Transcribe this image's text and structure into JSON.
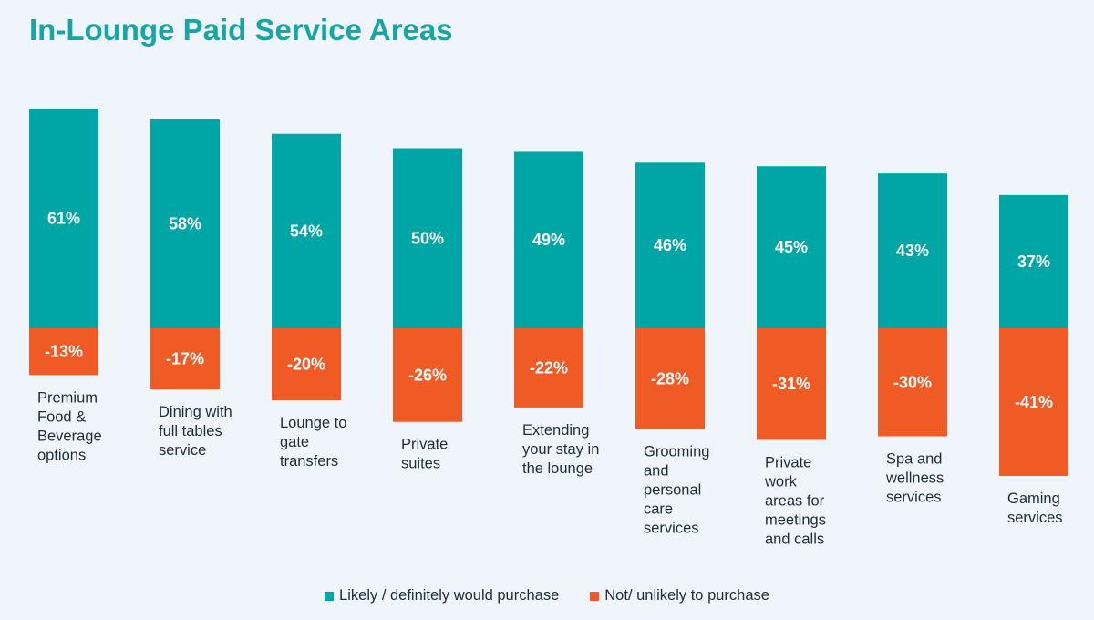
{
  "chart_data": {
    "type": "bar",
    "stacked": "diverging",
    "title": "In-Lounge Paid Service Areas",
    "categories": [
      [
        "Premium",
        "Food &",
        "Beverage",
        "options"
      ],
      [
        "Dining with",
        "full tables",
        "service"
      ],
      [
        "Lounge to",
        "gate",
        "transfers"
      ],
      [
        "Private",
        "suites"
      ],
      [
        "Extending",
        "your stay in",
        "the lounge"
      ],
      [
        "Grooming",
        "and",
        "personal",
        "care",
        "services"
      ],
      [
        "Private",
        "work",
        "areas for",
        "meetings",
        "and calls"
      ],
      [
        "Spa and",
        "wellness",
        "services"
      ],
      [
        "Gaming",
        "services"
      ]
    ],
    "series": [
      {
        "name": "Likely / definitely would purchase",
        "color": "#00a6a6",
        "values": [
          61,
          58,
          54,
          50,
          49,
          46,
          45,
          43,
          37
        ],
        "labels": [
          "61%",
          "58%",
          "54%",
          "50%",
          "49%",
          "46%",
          "45%",
          "43%",
          "37%"
        ]
      },
      {
        "name": "Not/ unlikely to purchase",
        "color": "#f05a24",
        "values": [
          -13,
          -17,
          -20,
          -26,
          -22,
          -28,
          -31,
          -30,
          -41
        ],
        "labels": [
          "-13%",
          "-17%",
          "-20%",
          "-26%",
          "-22%",
          "-28%",
          "-31%",
          "-30%",
          "-41%"
        ]
      }
    ],
    "legend_position": "bottom",
    "grid": false
  }
}
